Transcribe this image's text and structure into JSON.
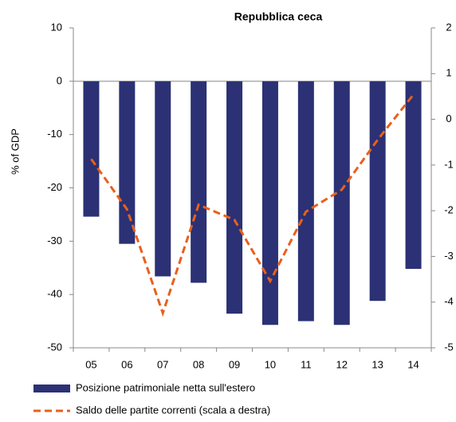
{
  "chart_data": {
    "type": "bar_line",
    "title": "Repubblica ceca",
    "ylabel": "% of GDP",
    "categories": [
      "05",
      "06",
      "07",
      "08",
      "09",
      "10",
      "11",
      "12",
      "13",
      "14"
    ],
    "series": [
      {
        "name": "Posizione patrimoniale netta sull'estero",
        "type": "bar",
        "color": "#2b3174",
        "values": [
          -25.4,
          -30.5,
          -36.6,
          -37.8,
          -43.6,
          -45.7,
          -45.0,
          -45.7,
          -41.2,
          -35.2
        ]
      },
      {
        "name": "Saldo delle partite correnti (scala a destra)",
        "type": "line",
        "axis": "y2",
        "color": "#e8601c",
        "values": [
          -0.87,
          -1.97,
          -4.24,
          -1.87,
          -2.2,
          -3.54,
          -2.02,
          -1.54,
          -0.45,
          0.54
        ]
      }
    ],
    "ylim": [
      -50,
      10
    ],
    "yticks": [
      -50,
      -40,
      -30,
      -20,
      -10,
      0,
      10
    ],
    "y2lim": [
      -5,
      2
    ],
    "y2ticks": [
      -5,
      -4,
      -3,
      -2,
      -1,
      0,
      1,
      2
    ]
  }
}
